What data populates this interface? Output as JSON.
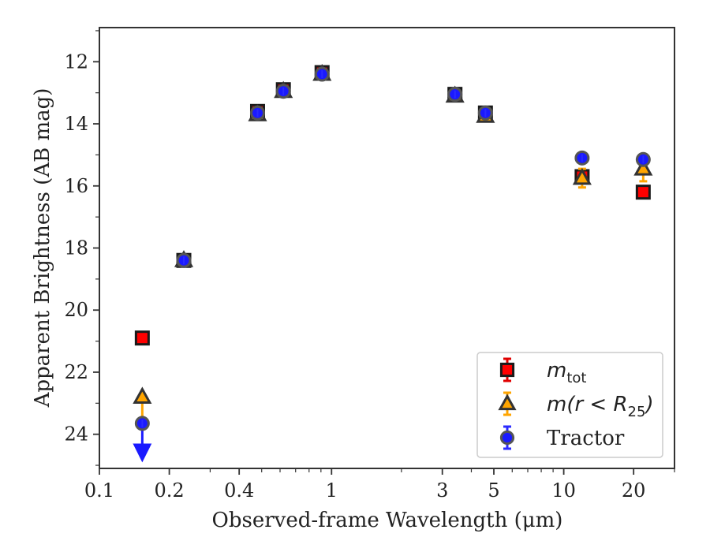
{
  "chart_data": {
    "type": "scatter",
    "xlabel": "Observed-frame Wavelength (μm)",
    "ylabel": "Apparent Brightness (AB mag)",
    "xscale": "log",
    "xlim": [
      0.1,
      30
    ],
    "ylim": [
      25.1,
      10.9
    ],
    "y_inverted": true,
    "x_ticks": [
      {
        "value": 0.1,
        "label": "0.1"
      },
      {
        "value": 0.2,
        "label": "0.2"
      },
      {
        "value": 0.4,
        "label": "0.4"
      },
      {
        "value": 1,
        "label": "1"
      },
      {
        "value": 3,
        "label": "3"
      },
      {
        "value": 5,
        "label": "5"
      },
      {
        "value": 10,
        "label": "10"
      },
      {
        "value": 20,
        "label": "20"
      }
    ],
    "x_minor_ticks": [
      0.3,
      0.5,
      0.6,
      0.7,
      0.8,
      0.9,
      2,
      4,
      6,
      7,
      8,
      9,
      30
    ],
    "y_ticks": [
      {
        "value": 12,
        "label": "12"
      },
      {
        "value": 14,
        "label": "14"
      },
      {
        "value": 16,
        "label": "16"
      },
      {
        "value": 18,
        "label": "18"
      },
      {
        "value": 20,
        "label": "20"
      },
      {
        "value": 22,
        "label": "22"
      },
      {
        "value": 24,
        "label": "24"
      }
    ],
    "grid": false,
    "legend_position": "lower-right",
    "legend": [
      {
        "main": "m",
        "sub": "tot",
        "marker": "square",
        "color": "#ff0000",
        "errcolor": "#e00000"
      },
      {
        "main": "m(r < R",
        "sub": "25",
        "close": ")",
        "marker": "triangle",
        "color": "#ffa500",
        "errcolor": "#ffa500"
      },
      {
        "main": "Tractor",
        "marker": "circle",
        "color": "#1a1aff",
        "errcolor": "#2b2bff"
      }
    ],
    "series": [
      {
        "name": "m_tot",
        "marker": "square",
        "color": "#ff0000",
        "points": [
          {
            "x": 0.153,
            "y": 20.9
          },
          {
            "x": 0.231,
            "y": 18.4
          },
          {
            "x": 0.48,
            "y": 13.6
          },
          {
            "x": 0.62,
            "y": 12.9
          },
          {
            "x": 0.91,
            "y": 12.35
          },
          {
            "x": 3.4,
            "y": 13.05
          },
          {
            "x": 4.6,
            "y": 13.65
          },
          {
            "x": 12.0,
            "y": 15.7
          },
          {
            "x": 22.0,
            "y": 16.2
          }
        ]
      },
      {
        "name": "m(r<R25)",
        "marker": "triangle",
        "color": "#ffa500",
        "points": [
          {
            "x": 0.153,
            "y": 22.8,
            "yerr": 0
          },
          {
            "x": 0.231,
            "y": 18.4
          },
          {
            "x": 0.48,
            "y": 13.7
          },
          {
            "x": 0.62,
            "y": 12.95
          },
          {
            "x": 0.91,
            "y": 12.4
          },
          {
            "x": 3.4,
            "y": 13.1
          },
          {
            "x": 4.6,
            "y": 13.75
          },
          {
            "x": 12.0,
            "y": 15.75,
            "yerr": 0.3
          },
          {
            "x": 22.0,
            "y": 15.45,
            "yerr": 0.4
          }
        ]
      },
      {
        "name": "Tractor",
        "marker": "circle",
        "color": "#1a1aff",
        "points": [
          {
            "x": 0.153,
            "y": 23.65,
            "upper_limit": true
          },
          {
            "x": 0.231,
            "y": 18.4
          },
          {
            "x": 0.48,
            "y": 13.65
          },
          {
            "x": 0.62,
            "y": 12.95
          },
          {
            "x": 0.91,
            "y": 12.4
          },
          {
            "x": 3.4,
            "y": 13.05
          },
          {
            "x": 4.6,
            "y": 13.65
          },
          {
            "x": 12.0,
            "y": 15.1
          },
          {
            "x": 22.0,
            "y": 15.15
          }
        ]
      }
    ]
  }
}
